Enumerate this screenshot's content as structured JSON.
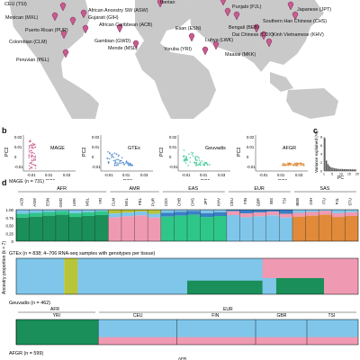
{
  "panel_letters": {
    "b": "b",
    "c": "c",
    "d": "d"
  },
  "map": {
    "labels": [
      "CEU (TSI)",
      "Iberian",
      "Punjabi (PJL)",
      "Japanese (JPT)",
      "African Ancestry SW (ASW)",
      "Gujarati (GIH)",
      "Mexican (MXL)",
      "Southern Han Chinese (CHS)",
      "African Caribbean (ACB)",
      "Puerto Rican (PUR)",
      "Esan (ESN)",
      "Bengali (BEB)",
      "Colombian (CLM)",
      "Gambian (GWD)",
      "Dai Chinese (CDX)",
      "Kinh Vietnamese (KHV)",
      "Luhya (LWK)",
      "Mende (MSL)",
      "Yoruba (YRI)",
      "Peruvian (PEL)",
      "Maasai (MKK)"
    ]
  },
  "pca": {
    "panels": [
      {
        "title": "MAGE",
        "xlabel": "PC1",
        "ylabel": "PC2",
        "xticks": [
          "-0.01",
          "0.01",
          "0.03"
        ]
      },
      {
        "title": "GTEx",
        "xlabel": "PC1",
        "ylabel": "PC2",
        "xticks": [
          "-0.01",
          "0.01",
          "0.03"
        ]
      },
      {
        "title": "Geuvadis",
        "xlabel": "PC1",
        "ylabel": "PC2",
        "xticks": [
          "-0.01",
          "0.01",
          "0.03"
        ]
      },
      {
        "title": "AFGR",
        "xlabel": "PC1",
        "ylabel": "PC2",
        "xticks": [
          "-0.01",
          "0.01",
          "0.03"
        ]
      }
    ],
    "yticks": [
      "0.02",
      "0.01",
      "0",
      "-0.01"
    ]
  },
  "variance": {
    "ylabel": "Variance explained (%)",
    "xlabel": "PC",
    "yticks": [
      "0",
      "2",
      "4",
      "6",
      "8"
    ],
    "xticks": [
      "1",
      "5",
      "10",
      "15",
      "20"
    ]
  },
  "admixture": {
    "ylabel": "Ancestry proportion (k = 7)",
    "yticks": [
      "1.00",
      "0.75",
      "0.50",
      "0.25",
      "0"
    ],
    "mage_title": "MAGE (n = 731)",
    "gtex_title": "GTEx (n = 838; 4–706 RNA-seq samples with genotypes per tissue)",
    "geuvadis_title": "Geuvadis (n = 462)",
    "afgr_title": "AFGR (n = 599)",
    "afgr_group": "AFR",
    "super_groups": [
      "AFR",
      "AMR",
      "EAS",
      "EUR",
      "SAS"
    ],
    "populations": [
      "ACB",
      "ASW",
      "ESN",
      "GWD",
      "LWK",
      "MSL",
      "YRI",
      "CLM",
      "MXL",
      "PEL",
      "PUR",
      "CDX",
      "CHB",
      "CHS",
      "JPT",
      "KHV",
      "CEU",
      "FIN",
      "GBR",
      "IBS",
      "TSI",
      "BEB",
      "GIH",
      "ITU",
      "PJL",
      "STU"
    ],
    "geuvadis_super": [
      "AFR",
      "EUR"
    ],
    "geuvadis_pops": [
      "YRI",
      "CEU",
      "FIN",
      "GBR",
      "TSI"
    ],
    "colors": {
      "c1": "#1a8f5a",
      "c2": "#2fc68a",
      "c3": "#7fc6ea",
      "c4": "#ef9ab2",
      "c5": "#e08a3a",
      "c6": "#b8c43a",
      "c7": "#3a7fc7"
    }
  },
  "chart_data": [
    {
      "type": "bar",
      "title": "",
      "xlabel": "PC",
      "ylabel": "Variance explained (%)",
      "categories": [
        "1",
        "2",
        "3",
        "4",
        "5",
        "6",
        "7",
        "8",
        "9",
        "10",
        "11",
        "12",
        "13",
        "14",
        "15",
        "16",
        "17",
        "18",
        "19",
        "20"
      ],
      "values": [
        8.2,
        2.6,
        1.7,
        1.2,
        0.9,
        0.8,
        0.7,
        0.6,
        0.55,
        0.5,
        0.5,
        0.48,
        0.46,
        0.45,
        0.44,
        0.43,
        0.42,
        0.41,
        0.4,
        0.4
      ],
      "ylim": [
        0,
        8.5
      ]
    }
  ]
}
